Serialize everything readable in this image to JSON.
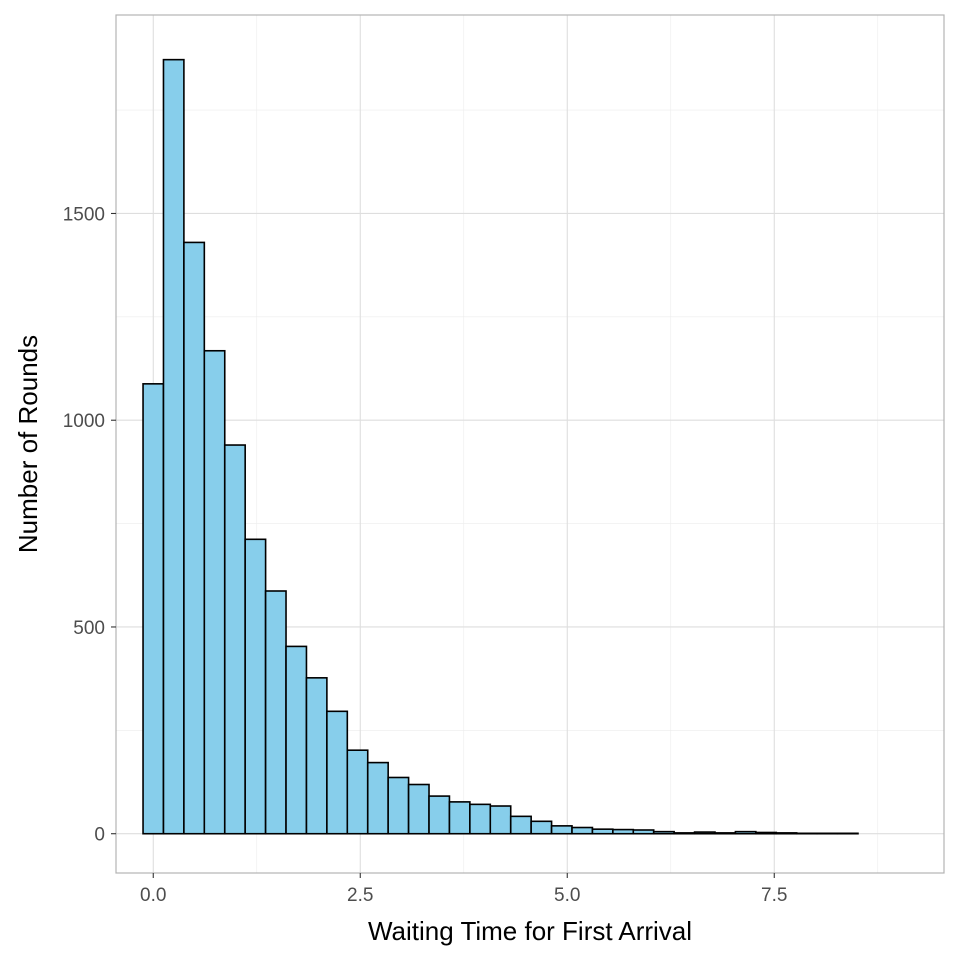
{
  "chart_data": {
    "type": "bar",
    "subtype": "histogram",
    "title": "",
    "xlabel": "Waiting Time for First Arrival",
    "ylabel": "Number of Rounds",
    "xlim": [
      -0.45,
      9.55
    ],
    "ylim": [
      -95,
      1980
    ],
    "x_ticks": [
      0.0,
      2.5,
      5.0,
      7.5
    ],
    "x_tick_labels": [
      "0.0",
      "2.5",
      "5.0",
      "7.5"
    ],
    "y_ticks": [
      0,
      500,
      1000,
      1500
    ],
    "y_tick_labels": [
      "0",
      "500",
      "1000",
      "1500"
    ],
    "x_minor_ticks": [
      1.25,
      3.75,
      6.25,
      8.75
    ],
    "y_minor_ticks": [
      250,
      750,
      1250,
      1750
    ],
    "grid": true,
    "bin_width": 0.2467,
    "bin_start": -0.1234,
    "values": [
      1088,
      1872,
      1430,
      1168,
      940,
      712,
      587,
      453,
      377,
      296,
      202,
      172,
      136,
      119,
      91,
      77,
      71,
      67,
      42,
      30,
      19,
      15,
      11,
      10,
      9,
      5,
      2,
      4,
      2,
      5,
      3,
      2,
      1,
      1,
      1
    ],
    "fill_color": "#87CEEB",
    "edge_color": "#000000",
    "panel_border_color": "#b3b3b3"
  }
}
